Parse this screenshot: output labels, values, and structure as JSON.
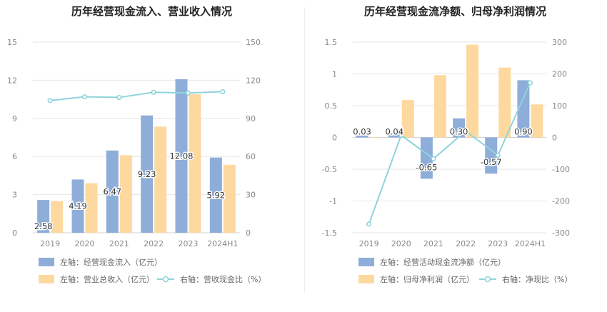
{
  "colors": {
    "bar_primary": "#8eadd9",
    "bar_secondary": "#fdd9a0",
    "line": "#8fd4dc",
    "grid": "#e6e6e6",
    "divider": "#eeeeee"
  },
  "chart_data": [
    {
      "type": "bar",
      "title": "历年经营现金流入、营业收入情况",
      "categories": [
        "2019",
        "2020",
        "2021",
        "2022",
        "2023",
        "2024H1"
      ],
      "left_axis": {
        "ylim": [
          0,
          15
        ],
        "ticks": [
          "0",
          "3",
          "6",
          "9",
          "12",
          "15"
        ]
      },
      "right_axis": {
        "ylim": [
          0,
          150
        ],
        "ticks": [
          "0",
          "30",
          "60",
          "90",
          "120",
          "150"
        ]
      },
      "series": [
        {
          "name": "左轴：经营现金流入（亿元）",
          "type": "bar",
          "axis": "left",
          "values": [
            2.58,
            4.19,
            6.47,
            9.23,
            12.08,
            5.92
          ],
          "labels": [
            "2.58",
            "4.19",
            "6.47",
            "9.23",
            "12.08",
            "5.92"
          ]
        },
        {
          "name": "左轴：营业总收入（亿元）",
          "type": "bar",
          "axis": "left",
          "values": [
            2.5,
            3.9,
            6.1,
            8.35,
            10.9,
            5.35
          ]
        },
        {
          "name": "右轴：营收现金比（%）",
          "type": "line",
          "axis": "right",
          "values": [
            104,
            107,
            106.5,
            110.5,
            110,
            111
          ]
        }
      ],
      "legend": "bottom-left",
      "grid": true
    },
    {
      "type": "bar",
      "title": "历年经营现金流净额、归母净利润情况",
      "categories": [
        "2019",
        "2020",
        "2021",
        "2022",
        "2023",
        "2024H1"
      ],
      "left_axis": {
        "ylim": [
          -1.5,
          1.5
        ],
        "ticks": [
          "-1.5",
          "-1",
          "-0.5",
          "0",
          "0.5",
          "1",
          "1.5"
        ]
      },
      "right_axis": {
        "ylim": [
          -300,
          300
        ],
        "ticks": [
          "-300",
          "-200",
          "-100",
          "0",
          "100",
          "200",
          "300"
        ]
      },
      "series": [
        {
          "name": "左轴：经营活动现金流净额（亿元）",
          "type": "bar",
          "axis": "left",
          "values": [
            0.03,
            0.04,
            -0.65,
            0.3,
            -0.57,
            0.9
          ],
          "labels": [
            "0.03",
            "0.04",
            "-0.65",
            "0.30",
            "-0.57",
            "0.90"
          ]
        },
        {
          "name": "左轴：归母净利润（亿元）",
          "type": "bar",
          "axis": "left",
          "values": [
            0.005,
            0.59,
            0.98,
            1.46,
            1.1,
            0.52
          ]
        },
        {
          "name": "右轴：净现比（%）",
          "type": "line",
          "axis": "right",
          "values": [
            -273,
            7,
            -67,
            20,
            -56,
            172
          ]
        }
      ],
      "legend": "bottom-left",
      "grid": true
    }
  ]
}
